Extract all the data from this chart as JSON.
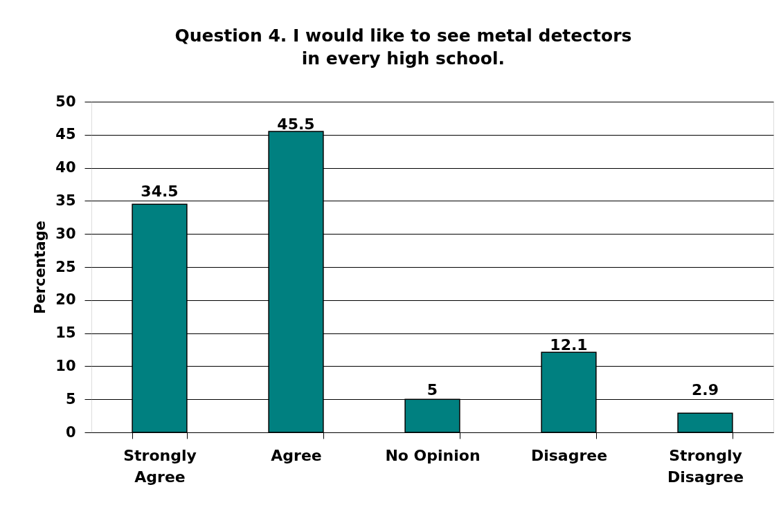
{
  "chart_data": {
    "type": "bar",
    "title": "Question 4. I would like to see metal detectors in every high school.",
    "ylabel": "Percentage",
    "categories": [
      "Strongly Agree",
      "Agree",
      "No Opinion",
      "Disagree",
      "Strongly Disagree"
    ],
    "values": [
      34.5,
      45.5,
      5,
      12.1,
      2.9
    ],
    "color": "#008080",
    "ylim": [
      0,
      50
    ],
    "yticks": [
      0,
      5,
      10,
      15,
      20,
      25,
      30,
      35,
      40,
      45,
      50
    ],
    "grid": "y",
    "data_labels": true
  }
}
